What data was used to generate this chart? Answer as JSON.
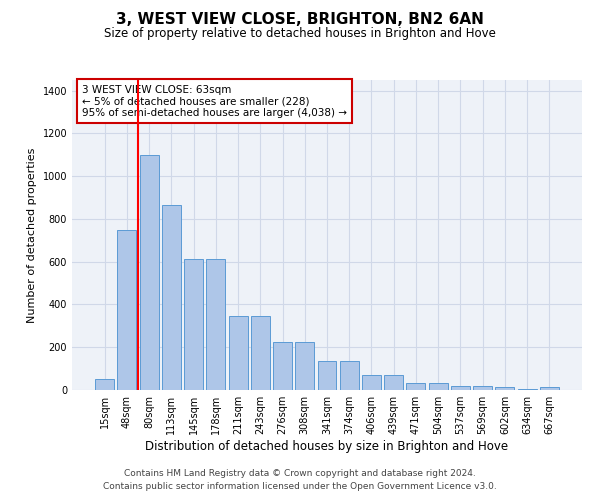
{
  "title": "3, WEST VIEW CLOSE, BRIGHTON, BN2 6AN",
  "subtitle": "Size of property relative to detached houses in Brighton and Hove",
  "xlabel": "Distribution of detached houses by size in Brighton and Hove",
  "ylabel": "Number of detached properties",
  "footnote1": "Contains HM Land Registry data © Crown copyright and database right 2024.",
  "footnote2": "Contains public sector information licensed under the Open Government Licence v3.0.",
  "categories": [
    "15sqm",
    "48sqm",
    "80sqm",
    "113sqm",
    "145sqm",
    "178sqm",
    "211sqm",
    "243sqm",
    "276sqm",
    "308sqm",
    "341sqm",
    "374sqm",
    "406sqm",
    "439sqm",
    "471sqm",
    "504sqm",
    "537sqm",
    "569sqm",
    "602sqm",
    "634sqm",
    "667sqm"
  ],
  "values": [
    50,
    750,
    1100,
    865,
    615,
    615,
    345,
    345,
    225,
    225,
    135,
    135,
    68,
    68,
    32,
    32,
    20,
    20,
    12,
    5,
    12
  ],
  "bar_color": "#aec6e8",
  "bar_edge_color": "#5b9bd5",
  "grid_color": "#d0d8e8",
  "background_color": "#eef2f8",
  "red_line_x": 1.5,
  "annotation_text": "3 WEST VIEW CLOSE: 63sqm\n← 5% of detached houses are smaller (228)\n95% of semi-detached houses are larger (4,038) →",
  "annotation_box_color": "#cc0000",
  "ylim": [
    0,
    1450
  ],
  "yticks": [
    0,
    200,
    400,
    600,
    800,
    1000,
    1200,
    1400
  ],
  "title_fontsize": 11,
  "subtitle_fontsize": 8.5,
  "ylabel_fontsize": 8,
  "xlabel_fontsize": 8.5,
  "tick_fontsize": 7,
  "annot_fontsize": 7.5
}
